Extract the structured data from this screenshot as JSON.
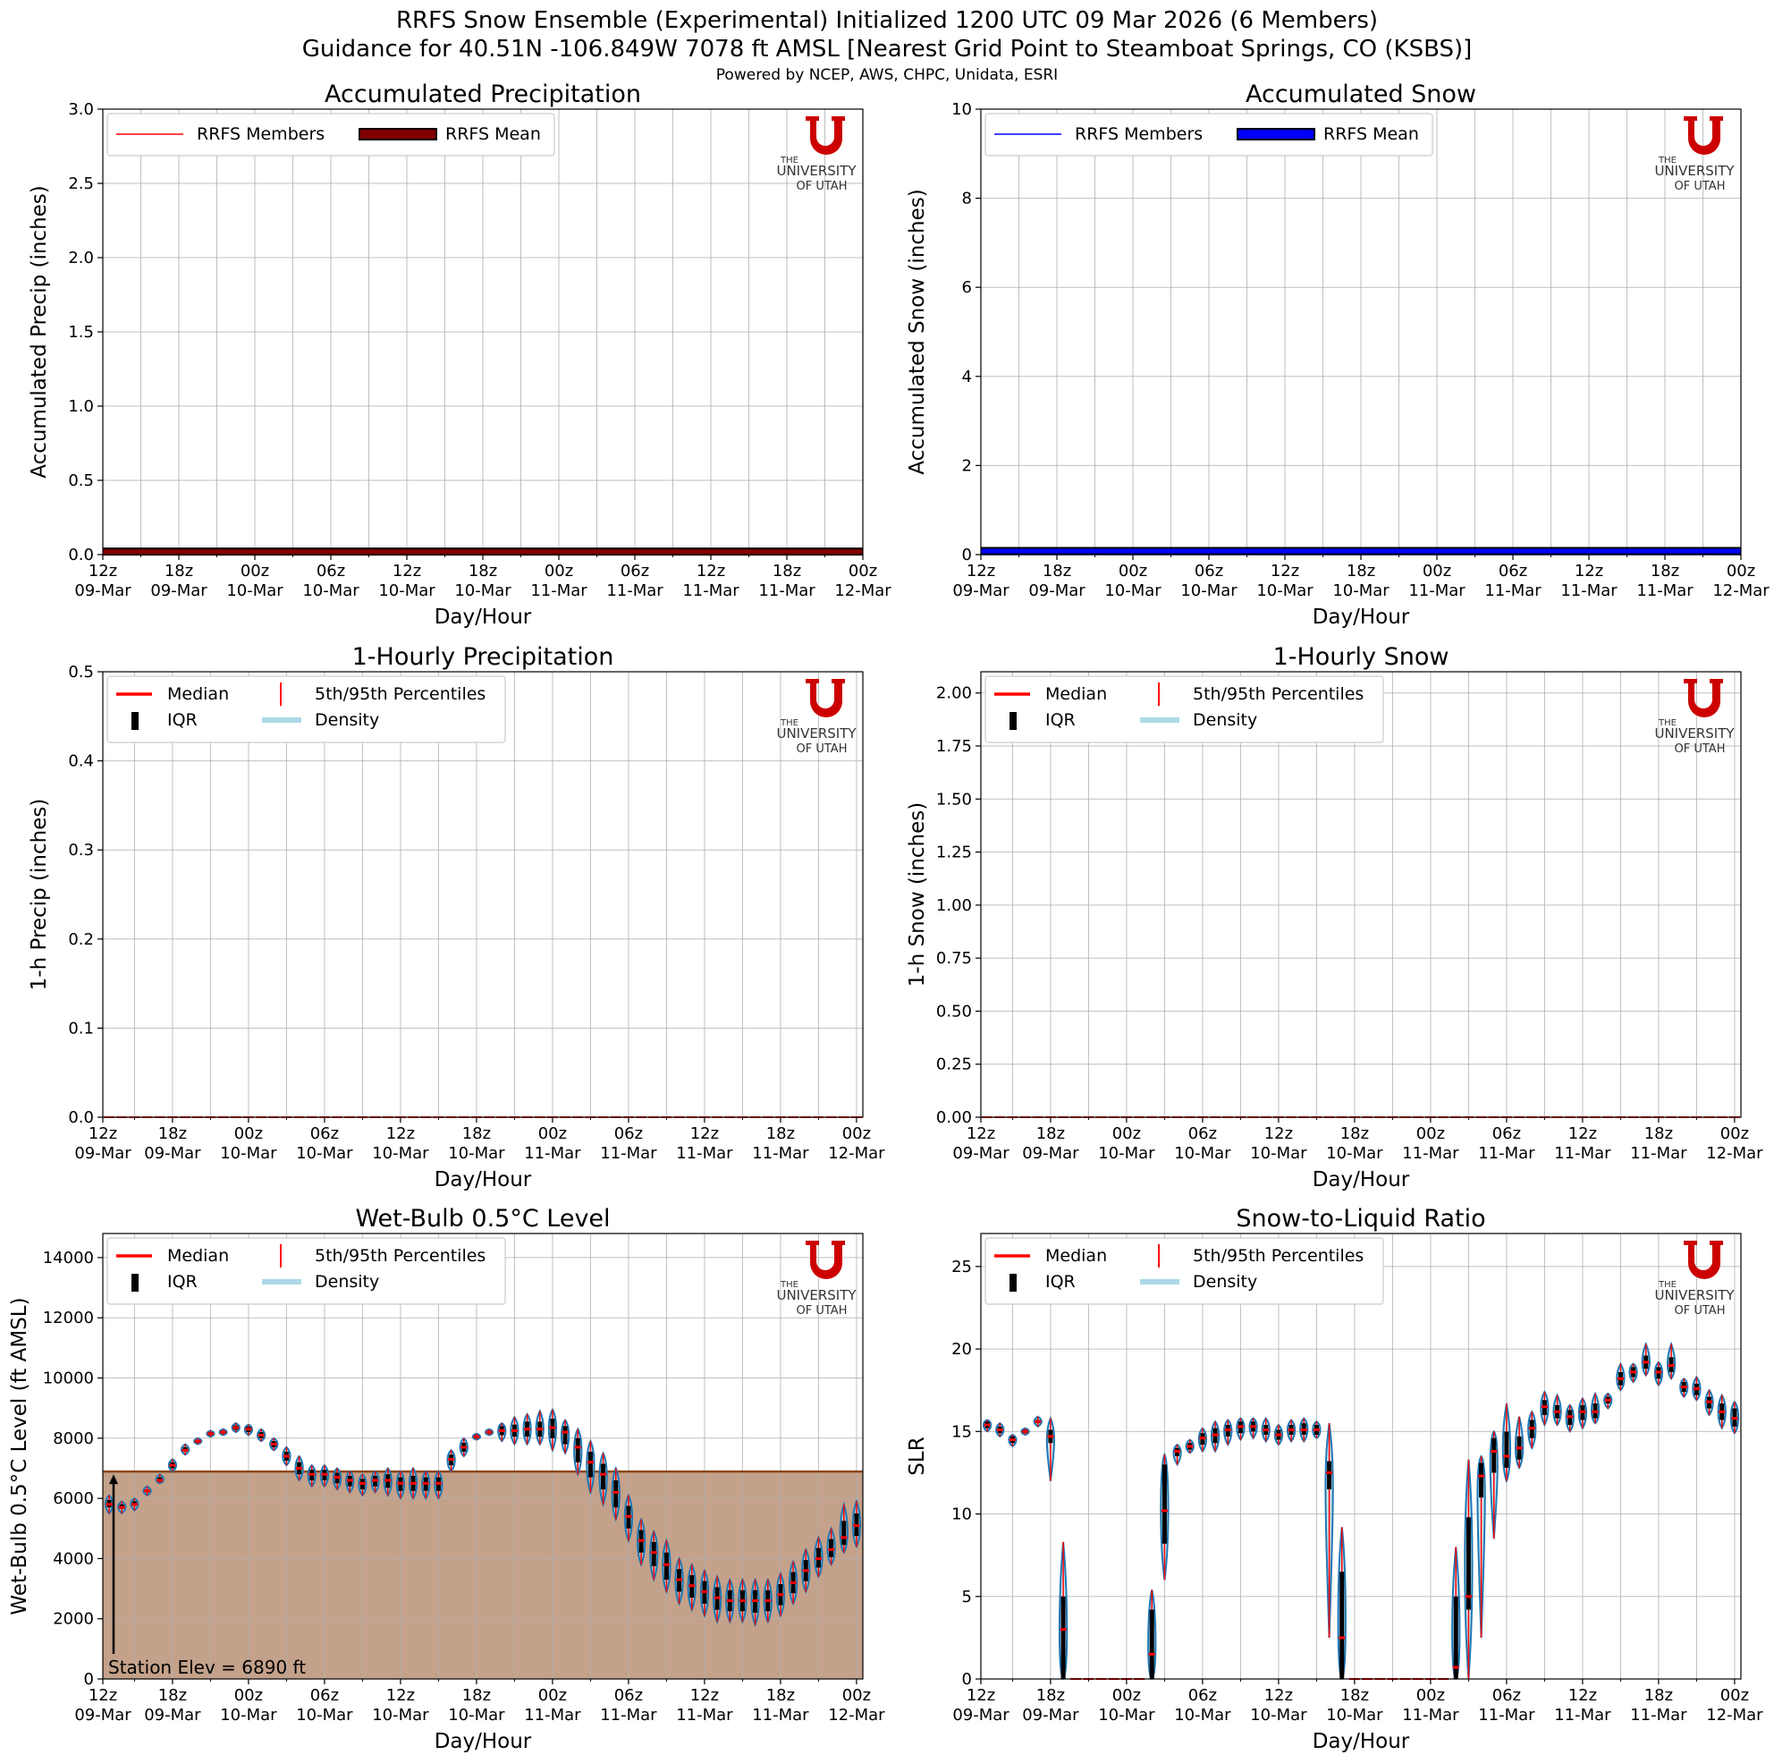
{
  "header": {
    "title_line1": "RRFS Snow Ensemble (Experimental) Initialized 1200 UTC 09 Mar 2026 (6 Members)",
    "title_line2": "Guidance for 40.51N -106.849W 7078 ft AMSL [Nearest Grid Point to Steamboat Springs, CO (KSBS)]",
    "powered_by": "Powered by NCEP, AWS, CHPC, Unidata, ESRI"
  },
  "logo": {
    "the": "THE",
    "university": "UNIVERSITY",
    "of_utah": "OF UTAH"
  },
  "x_axis": {
    "label": "Day/Hour",
    "ticks": [
      {
        "hour": "12z",
        "day": "09-Mar"
      },
      {
        "hour": "18z",
        "day": "09-Mar"
      },
      {
        "hour": "00z",
        "day": "10-Mar"
      },
      {
        "hour": "06z",
        "day": "10-Mar"
      },
      {
        "hour": "12z",
        "day": "10-Mar"
      },
      {
        "hour": "18z",
        "day": "10-Mar"
      },
      {
        "hour": "00z",
        "day": "11-Mar"
      },
      {
        "hour": "06z",
        "day": "11-Mar"
      },
      {
        "hour": "12z",
        "day": "11-Mar"
      },
      {
        "hour": "18z",
        "day": "11-Mar"
      },
      {
        "hour": "00z",
        "day": "12-Mar"
      }
    ]
  },
  "colors": {
    "red": "#ff0000",
    "darkred": "#800000",
    "blue": "#0000ff",
    "lightblue": "#add8e6",
    "terrain": "#c4a18a",
    "terrain_line": "#8b4513",
    "violin_edge": "#1f77b4"
  },
  "chart_data": [
    {
      "id": "accum_precip",
      "type": "line",
      "title": "Accumulated Precipitation",
      "ylabel": "Accumulated Precip (inches)",
      "xlabel": "Day/Hour",
      "ylim": [
        0,
        3.0
      ],
      "yticks": [
        "0.0",
        "0.5",
        "1.0",
        "1.5",
        "2.0",
        "2.5",
        "3.0"
      ],
      "legend": [
        {
          "label": "RRFS Members"
        },
        {
          "label": "RRFS Mean"
        }
      ],
      "legend_loc": "upper-left",
      "x_hours": [
        0,
        60
      ],
      "members_value": 0.0,
      "mean_value": 0.02,
      "grid": true
    },
    {
      "id": "accum_snow",
      "type": "line",
      "title": "Accumulated Snow",
      "ylabel": "Accumulated Snow (inches)",
      "xlabel": "Day/Hour",
      "ylim": [
        0,
        10
      ],
      "yticks": [
        "0",
        "2",
        "4",
        "6",
        "8",
        "10"
      ],
      "legend": [
        {
          "label": "RRFS Members"
        },
        {
          "label": "RRFS Mean"
        }
      ],
      "legend_loc": "upper-left",
      "x_hours": [
        0,
        60
      ],
      "members_value": 0.0,
      "mean_value": 0.08,
      "grid": true
    },
    {
      "id": "hourly_precip",
      "type": "violin",
      "title": "1-Hourly Precipitation",
      "ylabel": "1-h Precip (inches)",
      "xlabel": "Day/Hour",
      "ylim": [
        0,
        0.5
      ],
      "yticks": [
        "0.0",
        "0.1",
        "0.2",
        "0.3",
        "0.4",
        "0.5"
      ],
      "legend": [
        {
          "label": "Median"
        },
        {
          "label": "5th/95th Percentiles"
        },
        {
          "label": "IQR"
        },
        {
          "label": "Density"
        }
      ],
      "legend_loc": "upper-left",
      "median_all_hours": 0.0,
      "grid": true
    },
    {
      "id": "hourly_snow",
      "type": "violin",
      "title": "1-Hourly Snow",
      "ylabel": "1-h Snow (inches)",
      "xlabel": "Day/Hour",
      "ylim": [
        0,
        2.1
      ],
      "yticks": [
        "0.00",
        "0.25",
        "0.50",
        "0.75",
        "1.00",
        "1.25",
        "1.50",
        "1.75",
        "2.00"
      ],
      "legend": [
        {
          "label": "Median"
        },
        {
          "label": "5th/95th Percentiles"
        },
        {
          "label": "IQR"
        },
        {
          "label": "Density"
        }
      ],
      "legend_loc": "upper-left",
      "median_all_hours": 0.0,
      "grid": true
    },
    {
      "id": "wetbulb",
      "type": "violin",
      "title": "Wet-Bulb 0.5°C Level",
      "ylabel": "Wet-Bulb 0.5°C Level (ft AMSL)",
      "xlabel": "Day/Hour",
      "ylim": [
        0,
        14800
      ],
      "yticks": [
        "0",
        "2000",
        "4000",
        "6000",
        "8000",
        "10000",
        "12000",
        "14000"
      ],
      "legend": [
        {
          "label": "Median"
        },
        {
          "label": "5th/95th Percentiles"
        },
        {
          "label": "IQR"
        },
        {
          "label": "Density"
        }
      ],
      "legend_loc": "upper-left",
      "station_elev": 6890,
      "station_label": "Station Elev = 6890 ft",
      "grid": true,
      "hours": [
        1,
        2,
        3,
        4,
        5,
        6,
        7,
        8,
        9,
        10,
        11,
        12,
        13,
        14,
        15,
        16,
        17,
        18,
        19,
        20,
        21,
        22,
        23,
        24,
        25,
        26,
        27,
        28,
        29,
        30,
        31,
        32,
        33,
        34,
        35,
        36,
        37,
        38,
        39,
        40,
        41,
        42,
        43,
        44,
        45,
        46,
        47,
        48,
        49,
        50,
        51,
        52,
        53,
        54,
        55,
        56,
        57,
        58,
        59,
        60
      ],
      "median": [
        5800,
        5700,
        5800,
        6250,
        6600,
        7100,
        7600,
        7900,
        8150,
        8200,
        8350,
        8300,
        8100,
        7800,
        7400,
        7000,
        6800,
        6800,
        6700,
        6600,
        6500,
        6600,
        6600,
        6500,
        6500,
        6500,
        6500,
        7300,
        7700,
        8050,
        8200,
        8250,
        8250,
        8300,
        8300,
        8350,
        8200,
        7700,
        7200,
        6800,
        6200,
        5400,
        4600,
        4200,
        3800,
        3300,
        3100,
        2900,
        2700,
        2600,
        2600,
        2600,
        2600,
        2800,
        3200,
        3600,
        4000,
        4300,
        4700,
        5100
      ],
      "p5": [
        5500,
        5500,
        5600,
        6100,
        6500,
        6900,
        7450,
        7800,
        8050,
        8100,
        8200,
        8100,
        7900,
        7600,
        7100,
        6600,
        6400,
        6400,
        6300,
        6200,
        6100,
        6200,
        6100,
        6000,
        6000,
        6000,
        6000,
        6900,
        7400,
        7950,
        8100,
        7900,
        7800,
        7800,
        7800,
        7600,
        7500,
        6800,
        6200,
        5800,
        5300,
        4600,
        3800,
        3300,
        2900,
        2500,
        2300,
        2100,
        1900,
        1900,
        1900,
        1800,
        1900,
        2100,
        2500,
        2900,
        3400,
        3800,
        4200,
        4400
      ],
      "p95": [
        6100,
        5900,
        6000,
        6400,
        6800,
        7300,
        7800,
        8000,
        8250,
        8300,
        8500,
        8450,
        8300,
        8000,
        7700,
        7400,
        7100,
        7100,
        7000,
        6900,
        6800,
        6900,
        7000,
        6900,
        7000,
        6900,
        6900,
        7600,
        8000,
        8150,
        8300,
        8500,
        8700,
        8800,
        8900,
        8950,
        8600,
        8300,
        7900,
        7500,
        7000,
        6100,
        5300,
        4900,
        4600,
        4000,
        3800,
        3600,
        3400,
        3300,
        3300,
        3300,
        3300,
        3500,
        3900,
        4300,
        4700,
        5000,
        5800,
        5900
      ],
      "q25": [
        5700,
        5650,
        5750,
        6200,
        6550,
        7000,
        7550,
        7850,
        8100,
        8150,
        8280,
        8200,
        8000,
        7700,
        7250,
        6800,
        6600,
        6600,
        6500,
        6400,
        6300,
        6400,
        6350,
        6250,
        6250,
        6250,
        6250,
        7100,
        7550,
        8000,
        8150,
        8100,
        8050,
        8050,
        8050,
        8000,
        7800,
        7200,
        6700,
        6300,
        5700,
        5000,
        4200,
        3750,
        3300,
        2900,
        2700,
        2500,
        2300,
        2250,
        2250,
        2200,
        2250,
        2450,
        2850,
        3250,
        3700,
        4050,
        4450,
        4750
      ],
      "q75": [
        5950,
        5800,
        5900,
        6300,
        6700,
        7200,
        7700,
        7950,
        8200,
        8250,
        8420,
        8380,
        8200,
        7900,
        7550,
        7200,
        6950,
        6950,
        6850,
        6750,
        6650,
        6750,
        6800,
        6700,
        6750,
        6700,
        6700,
        7450,
        7850,
        8100,
        8250,
        8400,
        8450,
        8550,
        8550,
        8650,
        8400,
        8000,
        7550,
        7150,
        6600,
        5750,
        4950,
        4550,
        4200,
        3650,
        3450,
        3250,
        3050,
        2950,
        2950,
        2950,
        2950,
        3150,
        3550,
        3950,
        4350,
        4650,
        5250,
        5500
      ]
    },
    {
      "id": "slr",
      "type": "violin",
      "title": "Snow-to-Liquid Ratio",
      "ylabel": "SLR",
      "xlabel": "Day/Hour",
      "ylim": [
        0,
        27
      ],
      "yticks": [
        "0",
        "5",
        "10",
        "15",
        "20",
        "25"
      ],
      "legend": [
        {
          "label": "Median"
        },
        {
          "label": "5th/95th Percentiles"
        },
        {
          "label": "IQR"
        },
        {
          "label": "Density"
        }
      ],
      "legend_loc": "upper-left",
      "grid": true,
      "hours": [
        1,
        2,
        3,
        4,
        5,
        6,
        7,
        8,
        9,
        10,
        11,
        12,
        13,
        14,
        15,
        16,
        17,
        18,
        19,
        20,
        21,
        22,
        23,
        24,
        25,
        26,
        27,
        28,
        29,
        30,
        31,
        32,
        33,
        34,
        35,
        36,
        37,
        38,
        39,
        40,
        41,
        42,
        43,
        44,
        45,
        46,
        47,
        48,
        49,
        50,
        51,
        52,
        53,
        54,
        55,
        56,
        57,
        58,
        59,
        60
      ],
      "median": [
        15.4,
        15.1,
        14.5,
        15.0,
        15.6,
        14.7,
        3.0,
        0,
        0,
        0,
        0,
        0,
        0,
        1.5,
        10.2,
        13.8,
        14.1,
        14.6,
        14.8,
        15.1,
        15.3,
        15.3,
        15.1,
        14.8,
        15.1,
        15.1,
        15.1,
        12.5,
        2.5,
        0,
        0,
        0,
        0,
        0,
        0,
        0,
        0,
        0.7,
        5.0,
        12.3,
        13.8,
        13.5,
        14.0,
        15.2,
        16.5,
        16.2,
        15.9,
        16.2,
        16.2,
        16.9,
        18.2,
        18.6,
        19.2,
        18.6,
        19.0,
        17.7,
        17.6,
        16.8,
        16.2,
        15.8
      ],
      "p5": [
        15.0,
        14.7,
        14.1,
        14.8,
        15.3,
        12.0,
        0,
        0,
        0,
        0,
        0,
        0,
        0,
        0,
        6.0,
        13.0,
        13.7,
        13.8,
        13.8,
        14.2,
        14.5,
        14.6,
        14.4,
        14.2,
        14.4,
        14.4,
        14.6,
        2.5,
        0,
        0,
        0,
        0,
        0,
        0,
        0,
        0,
        0,
        0,
        0,
        2.5,
        8.5,
        12.0,
        12.8,
        14.0,
        15.4,
        15.4,
        15.0,
        15.2,
        15.5,
        16.4,
        17.5,
        18.0,
        18.4,
        17.8,
        18.2,
        17.1,
        16.9,
        16.0,
        15.2,
        14.9
      ],
      "p95": [
        15.7,
        15.5,
        14.8,
        15.2,
        15.9,
        15.8,
        8.3,
        0,
        0,
        0,
        0,
        0,
        0,
        5.4,
        13.6,
        14.2,
        14.5,
        15.2,
        15.6,
        15.7,
        15.8,
        15.8,
        15.8,
        15.4,
        15.7,
        15.8,
        15.6,
        15.5,
        9.2,
        0,
        0,
        0,
        0,
        0,
        0,
        0,
        0,
        8.0,
        13.3,
        13.5,
        15.0,
        16.7,
        15.9,
        16.2,
        17.4,
        17.2,
        16.6,
        17.0,
        17.3,
        17.3,
        19.1,
        19.1,
        20.3,
        19.2,
        20.3,
        18.2,
        18.3,
        17.5,
        17.2,
        16.8
      ],
      "q25": [
        15.2,
        14.9,
        14.3,
        14.9,
        15.5,
        14.3,
        0,
        0,
        0,
        0,
        0,
        0,
        0,
        0,
        8.2,
        13.5,
        13.9,
        14.2,
        14.3,
        14.7,
        14.9,
        15.0,
        14.8,
        14.5,
        14.8,
        14.8,
        14.8,
        11.5,
        0,
        0,
        0,
        0,
        0,
        0,
        0,
        0,
        0,
        0,
        4.2,
        11.0,
        12.5,
        12.8,
        13.3,
        14.6,
        16.0,
        15.8,
        15.4,
        15.7,
        15.8,
        16.7,
        17.8,
        18.3,
        18.8,
        18.2,
        18.6,
        17.4,
        17.2,
        16.4,
        15.7,
        15.3
      ],
      "q75": [
        15.6,
        15.3,
        14.7,
        15.1,
        15.7,
        15.1,
        5.0,
        0,
        0,
        0,
        0,
        0,
        0,
        4.2,
        13.0,
        14.0,
        14.3,
        14.9,
        15.2,
        15.4,
        15.6,
        15.6,
        15.4,
        15.1,
        15.4,
        15.5,
        15.4,
        13.2,
        6.5,
        0,
        0,
        0,
        0,
        0,
        0,
        0,
        0,
        5.0,
        9.8,
        13.1,
        14.6,
        15.0,
        14.7,
        15.7,
        16.9,
        16.6,
        16.3,
        16.6,
        16.7,
        17.1,
        18.6,
        18.9,
        19.6,
        18.9,
        19.5,
        18.0,
        17.9,
        17.1,
        16.7,
        16.4
      ]
    }
  ]
}
